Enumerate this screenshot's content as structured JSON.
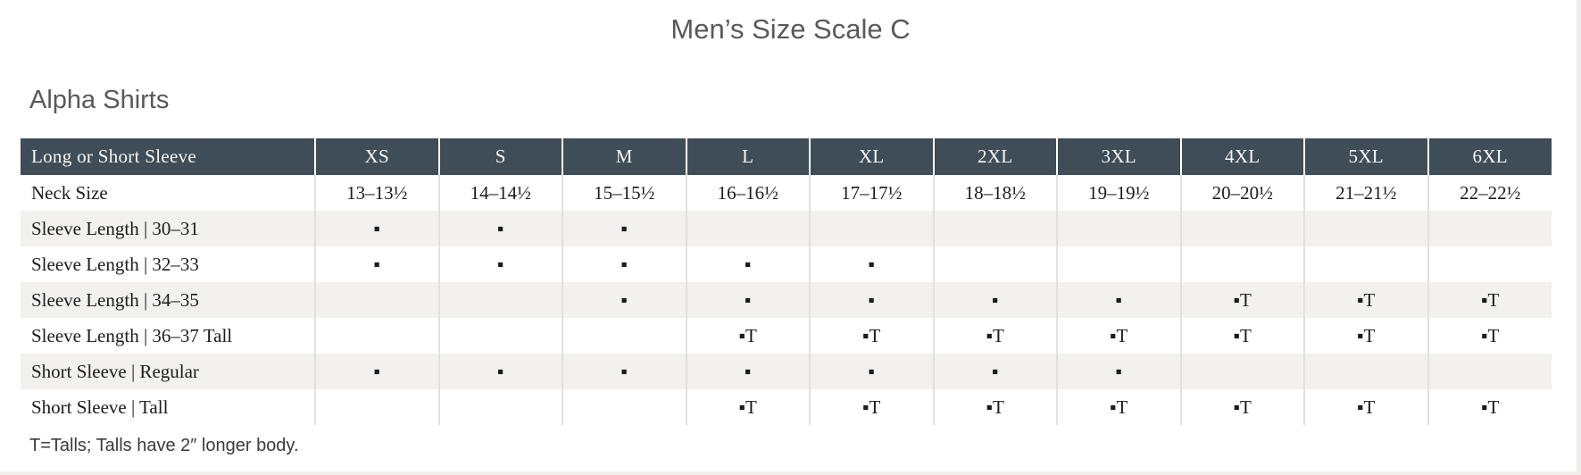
{
  "page": {
    "title": "Men’s Size Scale C",
    "section_title": "Alpha Shirts",
    "footnote": "T=Talls; Talls have 2″ longer body."
  },
  "colors": {
    "header_bg": "#3e4d57",
    "header_text": "#f7f7f7",
    "stripe_row_bg": "#f2f1ef",
    "body_text": "#1c1c1c",
    "heading_text": "#595959",
    "grid_line": "#e3e1de"
  },
  "table": {
    "header": [
      "Long or Short Sleeve",
      "XS",
      "S",
      "M",
      "L",
      "XL",
      "2XL",
      "3XL",
      "4XL",
      "5XL",
      "6XL"
    ],
    "rows": [
      {
        "label": "Neck Size",
        "cells": [
          "13–13½",
          "14–14½",
          "15–15½",
          "16–16½",
          "17–17½",
          "18–18½",
          "19–19½",
          "20–20½",
          "21–21½",
          "22–22½"
        ]
      },
      {
        "label": "Sleeve Length | 30–31",
        "cells": [
          "▪",
          "▪",
          "▪",
          "",
          "",
          "",
          "",
          "",
          "",
          ""
        ]
      },
      {
        "label": "Sleeve Length | 32–33",
        "cells": [
          "▪",
          "▪",
          "▪",
          "▪",
          "▪",
          "",
          "",
          "",
          "",
          ""
        ]
      },
      {
        "label": "Sleeve Length | 34–35",
        "cells": [
          "",
          "",
          "▪",
          "▪",
          "▪",
          "▪",
          "▪",
          "▪T",
          "▪T",
          "▪T"
        ]
      },
      {
        "label": "Sleeve Length | 36–37 Tall",
        "cells": [
          "",
          "",
          "",
          "▪T",
          "▪T",
          "▪T",
          "▪T",
          "▪T",
          "▪T",
          "▪T"
        ]
      },
      {
        "label": "Short Sleeve | Regular",
        "cells": [
          "▪",
          "▪",
          "▪",
          "▪",
          "▪",
          "▪",
          "▪",
          "",
          "",
          ""
        ]
      },
      {
        "label": "Short Sleeve | Tall",
        "cells": [
          "",
          "",
          "",
          "▪T",
          "▪T",
          "▪T",
          "▪T",
          "▪T",
          "▪T",
          "▪T"
        ]
      }
    ]
  }
}
